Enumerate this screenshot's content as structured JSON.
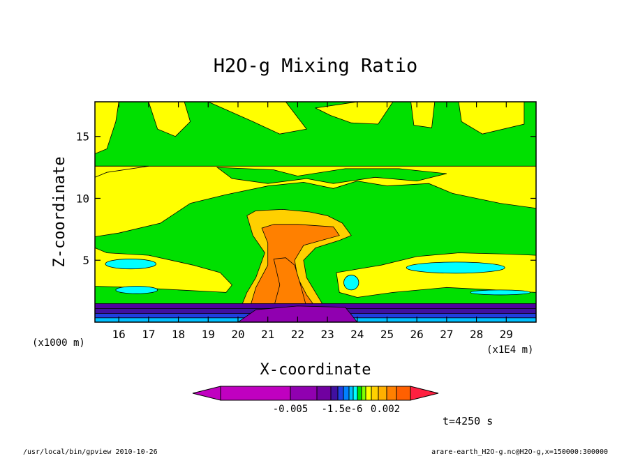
{
  "chart_data": {
    "type": "heatmap",
    "title": "H2O-g Mixing Ratio",
    "xlabel": "X-coordinate",
    "ylabel": "Z-coordinate",
    "x_unit_label": "(x1E4 m)",
    "y_unit_label": "(x1000 m)",
    "xlim": [
      15.2,
      30.0
    ],
    "ylim": [
      0,
      17.8
    ],
    "x_ticks": [
      16,
      17,
      18,
      19,
      20,
      21,
      22,
      23,
      24,
      25,
      26,
      27,
      28,
      29
    ],
    "y_ticks": [
      5,
      10,
      15
    ],
    "time_label": "t=4250 s",
    "colorbar": {
      "tick_labels": [
        "-0.005",
        "-1.5e-6",
        "0.002"
      ],
      "colors": [
        "#c000c0",
        "#9000b0",
        "#7000a0",
        "#4010a0",
        "#2040e0",
        "#0080ff",
        "#00c0ff",
        "#00ffff",
        "#00e000",
        "#80ff00",
        "#ffff00",
        "#ffd000",
        "#ffb000",
        "#ff8000",
        "#ff6000",
        "#ff2040"
      ]
    },
    "regions": {
      "background_color": "#00e000",
      "moist_band_color": "#ffff00",
      "plume_color": "#ffd000",
      "core_color": "#ff8000",
      "dry_pocket_color": "#00ffff",
      "surface_layer_color": "#5000a0"
    }
  },
  "footer": {
    "left": "/usr/local/bin/gpview  2010-10-26",
    "right": "arare-earth_H2O-g.nc@H2O-g,x=150000:300000"
  }
}
